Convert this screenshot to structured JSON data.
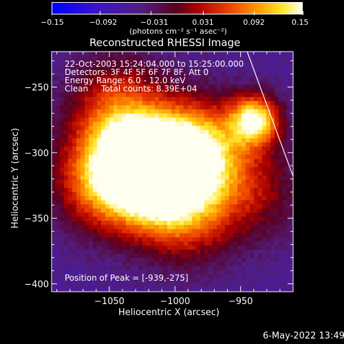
{
  "chart_data": {
    "type": "heatmap",
    "title": "Reconstructed RHESSI Image",
    "xlabel": "Heliocentric X (arcsec)",
    "ylabel": "Heliocentric Y (arcsec)",
    "xlim": [
      -1094,
      -910
    ],
    "ylim": [
      -406,
      -223
    ],
    "x_ticks": [
      -1050,
      -1000,
      -950
    ],
    "y_ticks": [
      -250,
      -300,
      -350,
      -400
    ],
    "x_tick_labels": [
      "−1050",
      "−1000",
      "−950"
    ],
    "y_tick_labels": [
      "−250",
      "−300",
      "−350",
      "−400"
    ],
    "colorbar": {
      "min": -0.15,
      "max": 0.15,
      "ticks": [
        -0.15,
        -0.092,
        -0.031,
        0.031,
        0.092,
        0.15
      ],
      "tick_labels": [
        "−0.15",
        "−0.092",
        "−0.031",
        "0.031",
        "0.092",
        "0.15"
      ],
      "unit_label": "(photons cm⁻² s⁻¹ asec⁻²)"
    },
    "info_lines": [
      "22-Oct-2003 15:24:04.000 to 15:25:00.000",
      "Detectors: 3F 4F 5F 6F 7F 8F, Att 0",
      "Energy Range: 6.0 - 12.0 keV",
      "Clean     Total counts: 8.39E+04"
    ],
    "peak_label": "Position of Peak = [-939,-275]",
    "peak_position": [
      -939,
      -275
    ],
    "limb_line": [
      [
        -945,
        -223
      ],
      [
        -910,
        -318
      ]
    ],
    "blobs": [
      {
        "x": -939,
        "y": -275,
        "intensity": 1.0
      },
      {
        "x": -1015,
        "y": -322,
        "intensity": 0.85
      },
      {
        "x": -1000,
        "y": -305,
        "intensity": 0.7
      },
      {
        "x": -1055,
        "y": -322,
        "intensity": 0.65
      },
      {
        "x": -1035,
        "y": -300,
        "intensity": 0.6
      },
      {
        "x": -975,
        "y": -295,
        "intensity": 0.55
      },
      {
        "x": -1045,
        "y": -262,
        "intensity": 0.45
      },
      {
        "x": -990,
        "y": -350,
        "intensity": 0.45
      },
      {
        "x": -940,
        "y": -330,
        "intensity": 0.35
      }
    ]
  },
  "footer": {
    "date": "6-May-2022 13:49"
  }
}
